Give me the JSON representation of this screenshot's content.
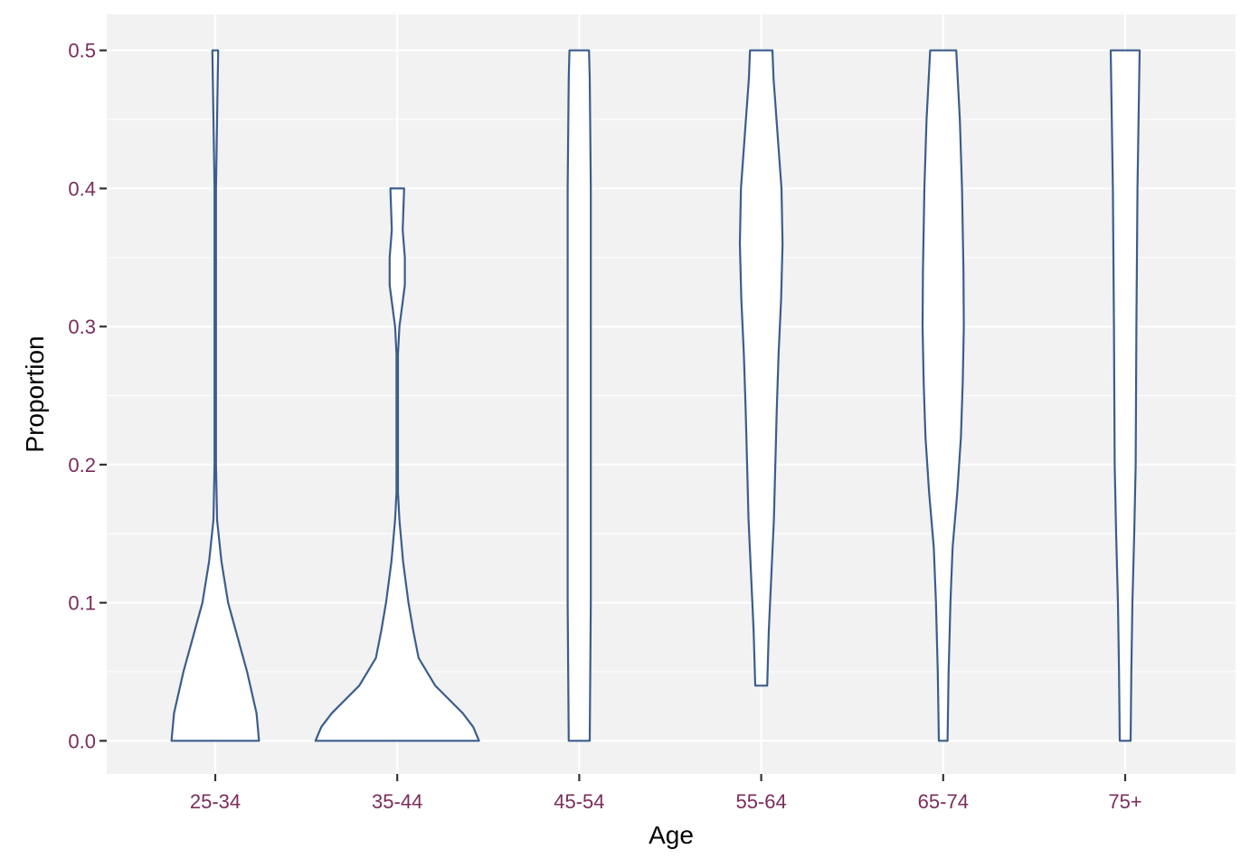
{
  "chart_data": {
    "type": "violin",
    "title": "",
    "xlabel": "Age",
    "ylabel": "Proportion",
    "categories": [
      "25-34",
      "35-44",
      "45-54",
      "55-64",
      "65-74",
      "75+"
    ],
    "ylim": [
      -0.024,
      0.526
    ],
    "yticks": [
      0.0,
      0.1,
      0.2,
      0.3,
      0.4,
      0.5
    ],
    "ytick_labels": [
      "0.0",
      "0.1",
      "0.2",
      "0.3",
      "0.4",
      "0.5"
    ],
    "grid": true,
    "legend": "none",
    "colors": {
      "panel_background": "#f2f2f2",
      "grid": "#ffffff",
      "violin_outline": "#3a5e8c",
      "violin_fill": "#ffffff",
      "tick_label": "#7b2d5b",
      "axis_title": "#000000",
      "tick_mark": "#333333"
    },
    "violins": [
      {
        "category": "25-34",
        "min": 0.0,
        "max": 0.5,
        "profile": [
          [
            0.0,
            0.242
          ],
          [
            0.02,
            0.228
          ],
          [
            0.05,
            0.176
          ],
          [
            0.08,
            0.113
          ],
          [
            0.1,
            0.071
          ],
          [
            0.13,
            0.034
          ],
          [
            0.16,
            0.01
          ],
          [
            0.2,
            0.004
          ],
          [
            0.3,
            0.004
          ],
          [
            0.4,
            0.004
          ],
          [
            0.5,
            0.016
          ]
        ]
      },
      {
        "category": "35-44",
        "min": 0.0,
        "max": 0.4,
        "profile": [
          [
            0.0,
            0.452
          ],
          [
            0.01,
            0.42
          ],
          [
            0.02,
            0.362
          ],
          [
            0.04,
            0.21
          ],
          [
            0.06,
            0.118
          ],
          [
            0.08,
            0.088
          ],
          [
            0.1,
            0.062
          ],
          [
            0.13,
            0.032
          ],
          [
            0.16,
            0.012
          ],
          [
            0.18,
            0.004
          ],
          [
            0.28,
            0.004
          ],
          [
            0.3,
            0.012
          ],
          [
            0.33,
            0.042
          ],
          [
            0.35,
            0.042
          ],
          [
            0.37,
            0.03
          ],
          [
            0.4,
            0.038
          ]
        ]
      },
      {
        "category": "45-54",
        "min": 0.0,
        "max": 0.5,
        "profile": [
          [
            0.0,
            0.058
          ],
          [
            0.1,
            0.064
          ],
          [
            0.2,
            0.064
          ],
          [
            0.3,
            0.064
          ],
          [
            0.4,
            0.064
          ],
          [
            0.48,
            0.058
          ],
          [
            0.5,
            0.054
          ]
        ]
      },
      {
        "category": "55-64",
        "min": 0.04,
        "max": 0.5,
        "profile": [
          [
            0.04,
            0.033
          ],
          [
            0.08,
            0.042
          ],
          [
            0.12,
            0.056
          ],
          [
            0.16,
            0.07
          ],
          [
            0.2,
            0.078
          ],
          [
            0.24,
            0.086
          ],
          [
            0.28,
            0.096
          ],
          [
            0.32,
            0.11
          ],
          [
            0.36,
            0.118
          ],
          [
            0.4,
            0.112
          ],
          [
            0.44,
            0.09
          ],
          [
            0.48,
            0.068
          ],
          [
            0.5,
            0.062
          ]
        ]
      },
      {
        "category": "65-74",
        "min": 0.0,
        "max": 0.5,
        "profile": [
          [
            0.0,
            0.024
          ],
          [
            0.05,
            0.03
          ],
          [
            0.1,
            0.04
          ],
          [
            0.14,
            0.052
          ],
          [
            0.18,
            0.078
          ],
          [
            0.22,
            0.098
          ],
          [
            0.26,
            0.108
          ],
          [
            0.3,
            0.114
          ],
          [
            0.34,
            0.112
          ],
          [
            0.4,
            0.104
          ],
          [
            0.45,
            0.092
          ],
          [
            0.5,
            0.072
          ]
        ]
      },
      {
        "category": "75+",
        "min": 0.0,
        "max": 0.5,
        "profile": [
          [
            0.0,
            0.03
          ],
          [
            0.05,
            0.034
          ],
          [
            0.1,
            0.04
          ],
          [
            0.15,
            0.05
          ],
          [
            0.2,
            0.058
          ],
          [
            0.3,
            0.062
          ],
          [
            0.4,
            0.068
          ],
          [
            0.45,
            0.074
          ],
          [
            0.5,
            0.08
          ]
        ]
      }
    ]
  }
}
